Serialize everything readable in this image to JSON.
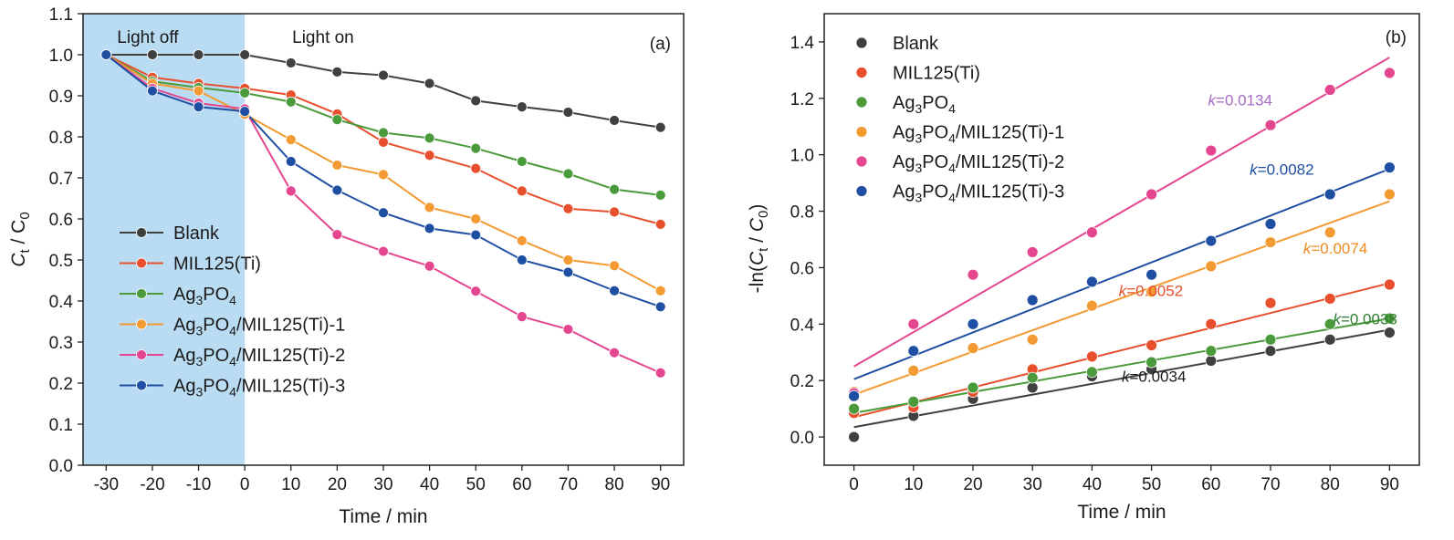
{
  "chart_data": [
    {
      "type": "line",
      "panel_label": "(a)",
      "xlabel": "Time / min",
      "ylabel": {
        "main": "C",
        "sub1": "t",
        "mid": " / C",
        "sub2": "0"
      },
      "xlim": [
        -35,
        95
      ],
      "ylim": [
        0.0,
        1.1
      ],
      "x_ticks": [
        -30,
        -20,
        -10,
        0,
        10,
        20,
        30,
        40,
        50,
        60,
        70,
        80,
        90
      ],
      "y_ticks": [
        "0.0",
        "0.1",
        "0.2",
        "0.3",
        "0.4",
        "0.5",
        "0.6",
        "0.7",
        "0.8",
        "0.9",
        "1.0",
        "1.1"
      ],
      "shaded_region": {
        "x_from": -35,
        "x_to": 0,
        "color": "#b9dcf3"
      },
      "annotations": {
        "dark": "Light off",
        "light": "Light on"
      },
      "legend_position": "lower-left",
      "x": [
        -30,
        -20,
        -10,
        0,
        10,
        20,
        30,
        40,
        50,
        60,
        70,
        80,
        90
      ],
      "series": [
        {
          "name": "Blank",
          "parts": [
            {
              "t": "Blank"
            }
          ],
          "color": "#404040",
          "values": [
            1.0,
            1.0,
            1.0,
            1.0,
            0.98,
            0.958,
            0.95,
            0.93,
            0.888,
            0.873,
            0.86,
            0.84,
            0.823
          ]
        },
        {
          "name": "MIL125(Ti)",
          "parts": [
            {
              "t": "MIL125(Ti)"
            }
          ],
          "color": "#e8502d",
          "values": [
            1.0,
            0.945,
            0.93,
            0.918,
            0.902,
            0.856,
            0.787,
            0.755,
            0.723,
            0.668,
            0.625,
            0.617,
            0.587
          ]
        },
        {
          "name": "Ag3PO4",
          "parts": [
            {
              "t": "Ag"
            },
            {
              "t": "3",
              "sub": true
            },
            {
              "t": "PO"
            },
            {
              "t": "4",
              "sub": true
            }
          ],
          "color": "#4b9a3b",
          "values": [
            1.0,
            0.935,
            0.92,
            0.907,
            0.885,
            0.842,
            0.81,
            0.797,
            0.772,
            0.74,
            0.71,
            0.672,
            0.658
          ]
        },
        {
          "name": "Ag3PO4/MIL125(Ti)-1",
          "parts": [
            {
              "t": "Ag"
            },
            {
              "t": "3",
              "sub": true
            },
            {
              "t": "PO"
            },
            {
              "t": "4",
              "sub": true
            },
            {
              "t": "/MIL125(Ti)-1"
            }
          ],
          "color": "#f39a32",
          "values": [
            1.0,
            0.93,
            0.912,
            0.855,
            0.793,
            0.731,
            0.708,
            0.628,
            0.6,
            0.547,
            0.5,
            0.486,
            0.425
          ]
        },
        {
          "name": "Ag3PO4/MIL125(Ti)-2",
          "parts": [
            {
              "t": "Ag"
            },
            {
              "t": "3",
              "sub": true
            },
            {
              "t": "PO"
            },
            {
              "t": "4",
              "sub": true
            },
            {
              "t": "/MIL125(Ti)-2"
            }
          ],
          "color": "#e4468f",
          "values": [
            1.0,
            0.918,
            0.882,
            0.868,
            0.668,
            0.562,
            0.521,
            0.485,
            0.424,
            0.362,
            0.331,
            0.274,
            0.225
          ]
        },
        {
          "name": "Ag3PO4/MIL125(Ti)-3",
          "parts": [
            {
              "t": "Ag"
            },
            {
              "t": "3",
              "sub": true
            },
            {
              "t": "PO"
            },
            {
              "t": "4",
              "sub": true
            },
            {
              "t": "/MIL125(Ti)-3"
            }
          ],
          "color": "#1f4fa3",
          "values": [
            1.0,
            0.912,
            0.873,
            0.862,
            0.74,
            0.67,
            0.615,
            0.577,
            0.561,
            0.5,
            0.47,
            0.425,
            0.386
          ]
        }
      ]
    },
    {
      "type": "scatter",
      "panel_label": "(b)",
      "xlabel": "Time / min",
      "ylabel": {
        "pre": "-ln(C",
        "sub1": "t",
        "mid": " / C",
        "sub2": "0",
        "post": ")"
      },
      "xlim": [
        -5,
        95
      ],
      "ylim": [
        -0.1,
        1.5
      ],
      "x_ticks": [
        0,
        10,
        20,
        30,
        40,
        50,
        60,
        70,
        80,
        90
      ],
      "y_ticks": [
        "0.0",
        "0.2",
        "0.4",
        "0.6",
        "0.8",
        "1.0",
        "1.2",
        "1.4"
      ],
      "legend_position": "upper-left",
      "x": [
        0,
        10,
        20,
        30,
        40,
        50,
        60,
        70,
        80,
        90
      ],
      "series": [
        {
          "name": "Blank",
          "parts": [
            {
              "t": "Blank"
            }
          ],
          "color": "#404040",
          "values": [
            0.0,
            0.075,
            0.135,
            0.175,
            0.215,
            0.24,
            0.27,
            0.305,
            0.345,
            0.37
          ],
          "fit": [
            0.035,
            0.38
          ],
          "k": "=0.0034",
          "k_color": "#1a1a1a",
          "k_at": [
            45,
            0.195
          ]
        },
        {
          "name": "MIL125(Ti)",
          "parts": [
            {
              "t": "MIL125(Ti)"
            }
          ],
          "color": "#e8502d",
          "values": [
            0.085,
            0.105,
            0.16,
            0.24,
            0.285,
            0.325,
            0.4,
            0.475,
            0.49,
            0.54
          ],
          "fit": [
            0.07,
            0.545
          ],
          "k": "=0.0052",
          "k_color": "#e8502d",
          "k_at": [
            44.5,
            0.5
          ]
        },
        {
          "name": "Ag3PO4",
          "parts": [
            {
              "t": "Ag"
            },
            {
              "t": "3",
              "sub": true
            },
            {
              "t": "PO"
            },
            {
              "t": "4",
              "sub": true
            }
          ],
          "color": "#4b9a3b",
          "values": [
            0.1,
            0.125,
            0.175,
            0.21,
            0.23,
            0.265,
            0.305,
            0.345,
            0.4,
            0.42
          ],
          "fit": [
            0.085,
            0.42
          ],
          "k": "=0.0038",
          "k_color": "#2e7d32",
          "k_at": [
            80.5,
            0.4
          ]
        },
        {
          "name": "Ag3PO4/MIL125(Ti)-1",
          "parts": [
            {
              "t": "Ag"
            },
            {
              "t": "3",
              "sub": true
            },
            {
              "t": "PO"
            },
            {
              "t": "4",
              "sub": true
            },
            {
              "t": "/MIL125(Ti)-1"
            }
          ],
          "color": "#f39a32",
          "values": [
            0.16,
            0.235,
            0.315,
            0.345,
            0.465,
            0.515,
            0.605,
            0.69,
            0.725,
            0.86
          ],
          "fit": [
            0.15,
            0.835
          ],
          "k": "=0.0074",
          "k_color": "#ef8a1f",
          "k_at": [
            75.5,
            0.65
          ]
        },
        {
          "name": "Ag3PO4/MIL125(Ti)-2",
          "parts": [
            {
              "t": "Ag"
            },
            {
              "t": "3",
              "sub": true
            },
            {
              "t": "PO"
            },
            {
              "t": "4",
              "sub": true
            },
            {
              "t": "/MIL125(Ti)-2"
            }
          ],
          "color": "#e4468f",
          "values": [
            0.155,
            0.4,
            0.575,
            0.655,
            0.725,
            0.86,
            1.015,
            1.105,
            1.23,
            1.29
          ],
          "fit": [
            0.25,
            1.345
          ],
          "k": "=0.0134",
          "k_color": "#a66bc2",
          "k_at": [
            59.5,
            1.175
          ]
        },
        {
          "name": "Ag3PO4/MIL125(Ti)-3",
          "parts": [
            {
              "t": "Ag"
            },
            {
              "t": "3",
              "sub": true
            },
            {
              "t": "PO"
            },
            {
              "t": "4",
              "sub": true
            },
            {
              "t": "/MIL125(Ti)-3"
            }
          ],
          "color": "#1f4fa3",
          "values": [
            0.145,
            0.305,
            0.4,
            0.485,
            0.55,
            0.575,
            0.695,
            0.755,
            0.86,
            0.955
          ],
          "fit": [
            0.205,
            0.95
          ],
          "k": "=0.0082",
          "k_color": "#1f4fa3",
          "k_at": [
            66.5,
            0.93
          ]
        }
      ]
    }
  ]
}
